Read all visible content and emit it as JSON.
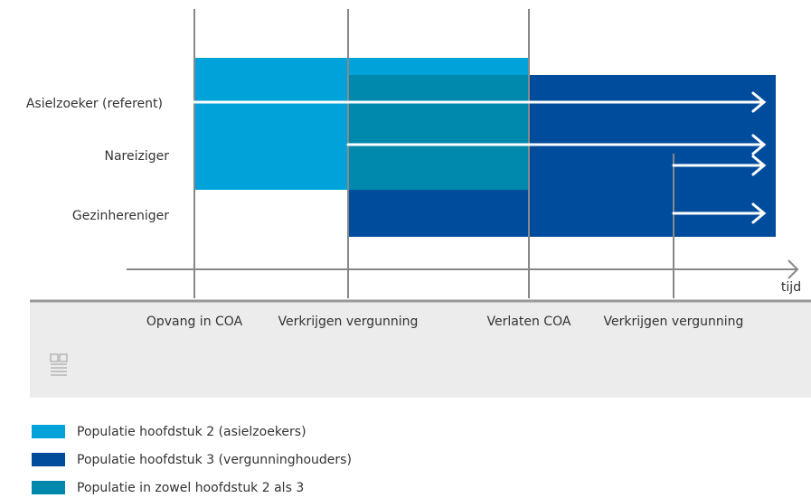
{
  "rows": [
    "Asielzoeker (referent)",
    "Nareiziger",
    "Gezinhereniger"
  ],
  "axis_label": "tijd",
  "events": [
    "Opvang in COA",
    "Verkrijgen vergunning",
    "Verlaten COA",
    "Verkrijgen vergunning"
  ],
  "legend": [
    "Populatie hoofdstuk 2 (asielzoekers)",
    "Populatie hoofdstuk 3 (vergunninghouders)",
    "Populatie in zowel hoofdstuk 2 als 3"
  ]
}
